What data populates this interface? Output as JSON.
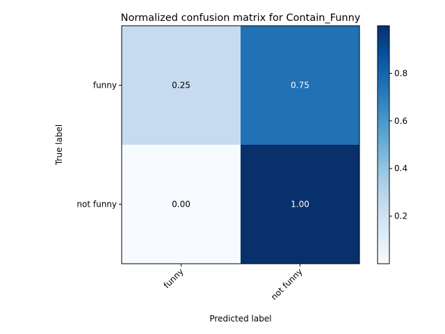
{
  "chart_data": {
    "type": "heatmap",
    "title": "Normalized confusion matrix for Contain_Funny",
    "xlabel": "Predicted label",
    "ylabel": "True label",
    "x_categories": [
      "funny",
      "not funny"
    ],
    "y_categories": [
      "funny",
      "not funny"
    ],
    "values": [
      [
        0.25,
        0.75
      ],
      [
        0.0,
        1.0
      ]
    ],
    "cell_labels": [
      [
        "0.25",
        "0.75"
      ],
      [
        "0.00",
        "1.00"
      ]
    ],
    "colormap": "Blues",
    "colorbar": {
      "range": [
        0.0,
        1.0
      ],
      "ticks": [
        0.2,
        0.4,
        0.6,
        0.8
      ],
      "tick_labels": [
        "0.2",
        "0.4",
        "0.6",
        "0.8"
      ]
    },
    "grid": false
  }
}
